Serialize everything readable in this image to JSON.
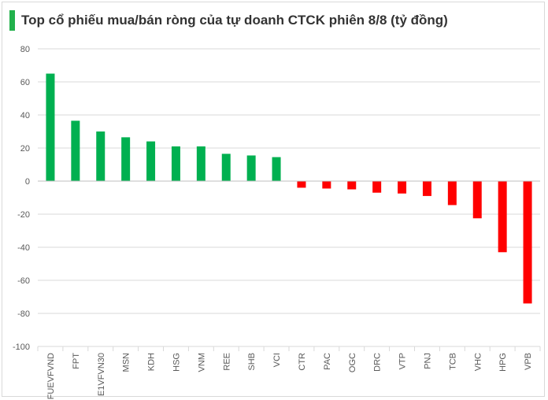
{
  "chart_data": {
    "type": "bar",
    "title": "Top cổ phiếu mua/bán ròng của tự doanh CTCK phiên 8/8 (tỷ đồng)",
    "xlabel": "",
    "ylabel": "",
    "ylim": [
      -100,
      80
    ],
    "yticks": [
      80,
      60,
      40,
      20,
      0,
      -20,
      -40,
      -60,
      -80,
      -100
    ],
    "grid": true,
    "legend": "none",
    "categories": [
      "FUEVFVND",
      "FPT",
      "E1VFVN30",
      "MSN",
      "KDH",
      "HSG",
      "VNM",
      "REE",
      "SHB",
      "VCI",
      "CTR",
      "PAC",
      "OGC",
      "DRC",
      "VTP",
      "PNJ",
      "TCB",
      "VHC",
      "HPG",
      "VPB"
    ],
    "values": [
      65,
      36.5,
      30,
      26.5,
      24,
      21,
      21,
      16.5,
      15.5,
      14.5,
      -4,
      -4.5,
      -5,
      -7,
      -7.5,
      -9,
      -14.5,
      -22.5,
      -43,
      -74
    ],
    "colors": {
      "positive": "#00b050",
      "negative": "#ff0000",
      "accent": "#22b14c"
    }
  }
}
